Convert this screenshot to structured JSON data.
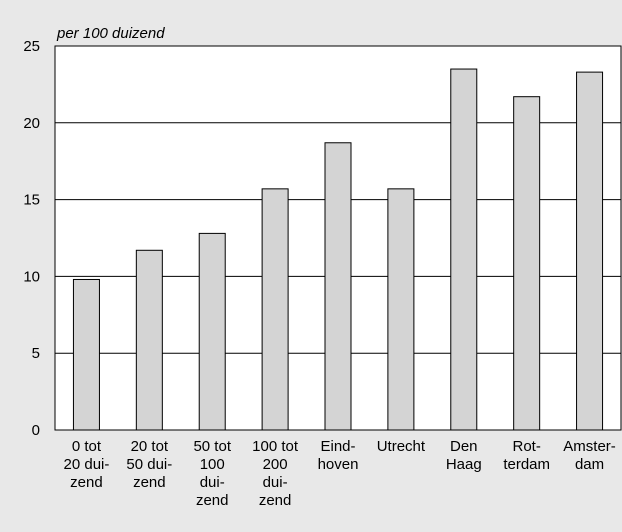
{
  "chart_data": {
    "type": "bar",
    "y_label": "per 100 duizend",
    "categories": [
      [
        "0 tot",
        "20 dui-",
        "zend"
      ],
      [
        "20 tot",
        "50 dui-",
        "zend"
      ],
      [
        "50 tot",
        "100",
        "dui-",
        "zend"
      ],
      [
        "100 tot",
        "200",
        "dui-",
        "zend"
      ],
      [
        "Eind-",
        "hoven"
      ],
      [
        "Utrecht"
      ],
      [
        "Den",
        "Haag"
      ],
      [
        "Rot-",
        "terdam"
      ],
      [
        "Amster-",
        "dam"
      ]
    ],
    "values": [
      9.8,
      11.7,
      12.8,
      15.7,
      18.7,
      15.7,
      23.5,
      21.7,
      23.3
    ],
    "color": "#d4d4d4",
    "ylim": [
      0,
      25
    ],
    "yticks": [
      0,
      5,
      10,
      15,
      20,
      25
    ],
    "grid": true
  }
}
